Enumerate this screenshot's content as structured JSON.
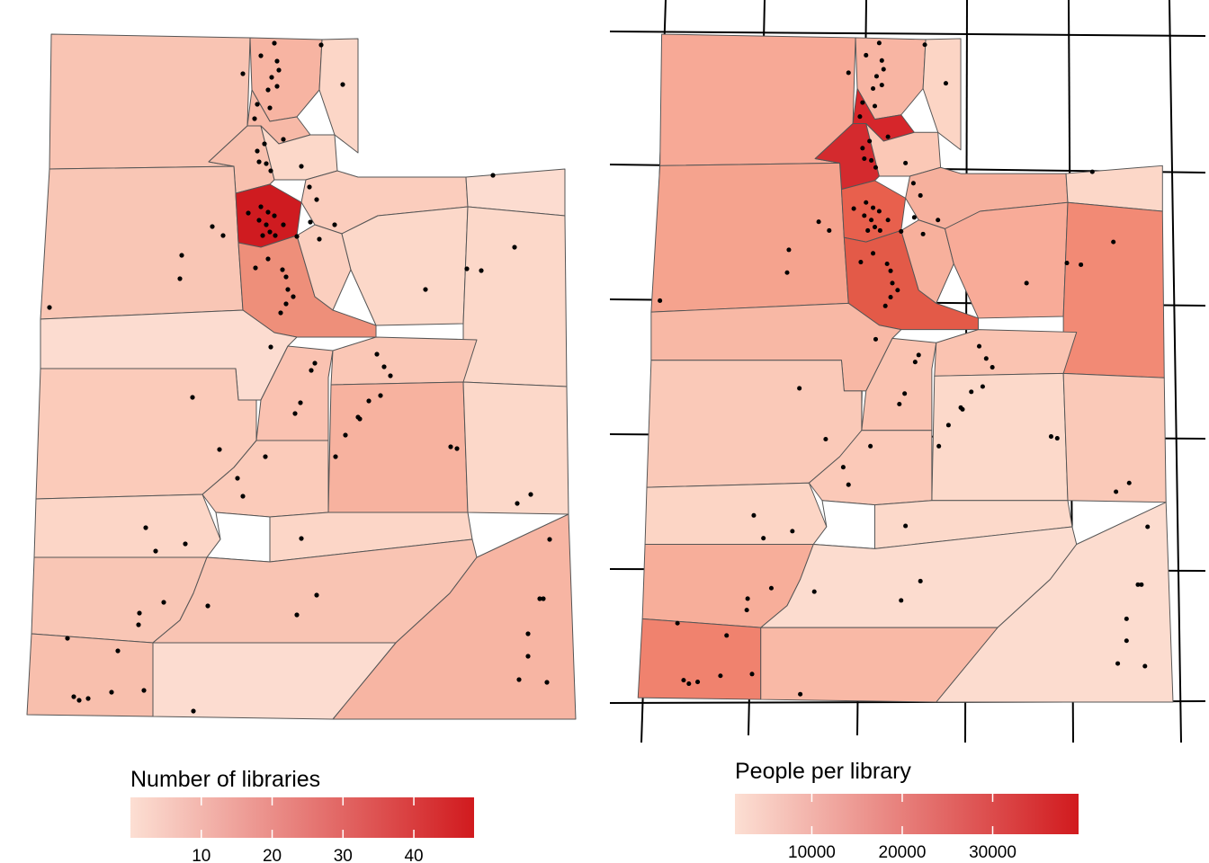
{
  "maps": [
    {
      "legend": {
        "title": "Number of libraries",
        "range": [
          0,
          48.5
        ],
        "ticks": [
          10,
          20,
          30,
          40
        ],
        "colors": [
          "#fcdfd3",
          "#d11a1e"
        ]
      }
    },
    {
      "legend": {
        "title": "People per library",
        "range": [
          1500,
          39500
        ],
        "ticks": [
          10000,
          20000,
          30000
        ],
        "colors": [
          "#fcdfd3",
          "#d11a1e"
        ]
      }
    }
  ]
}
